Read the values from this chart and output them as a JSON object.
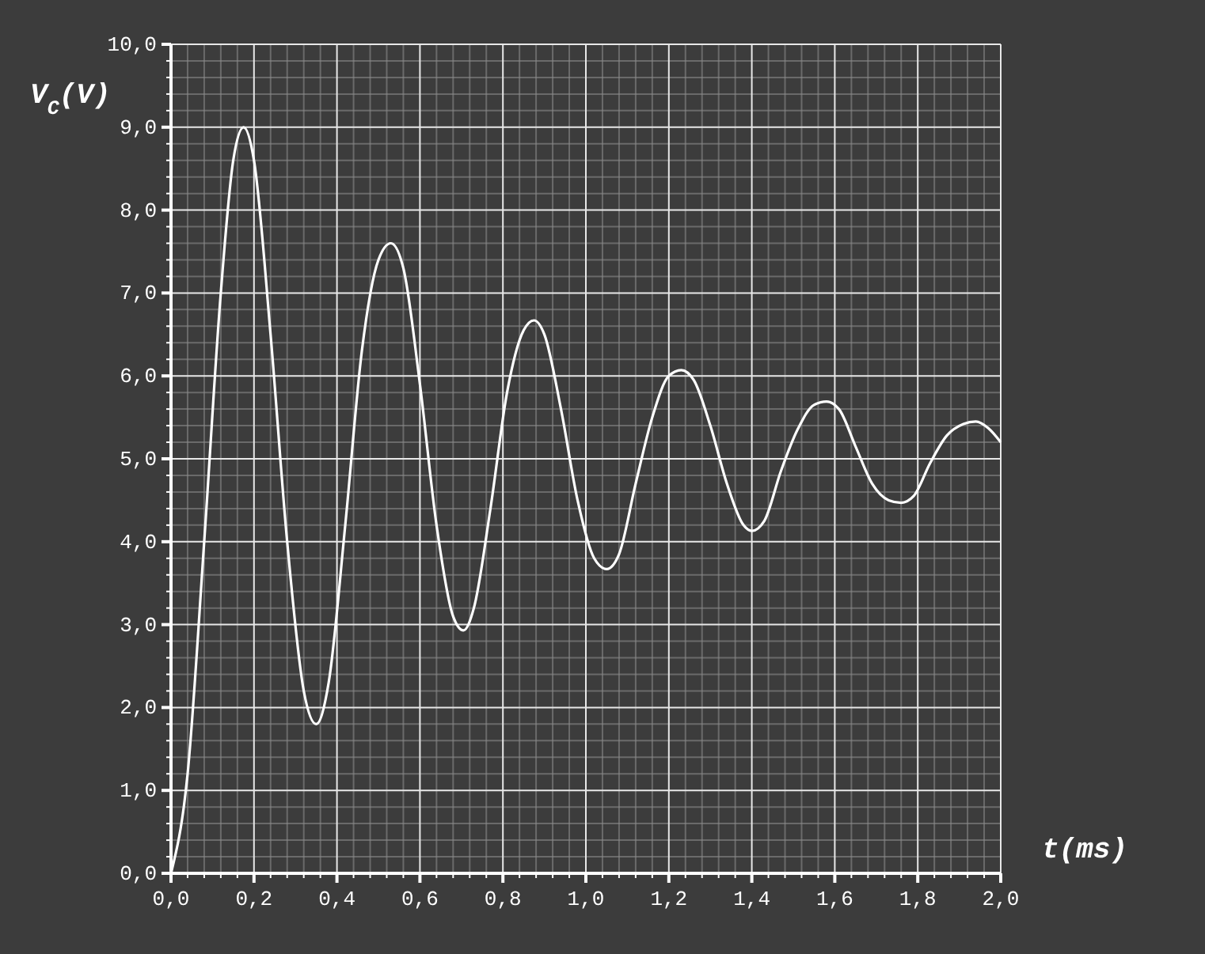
{
  "chart_data": {
    "type": "line",
    "xlabel": "t(ms)",
    "ylabel": "V$_{C}$(V)",
    "x": [
      0,
      0.04,
      0.08,
      0.12,
      0.15,
      0.175,
      0.2,
      0.24,
      0.28,
      0.32,
      0.35,
      0.38,
      0.42,
      0.46,
      0.5,
      0.53,
      0.56,
      0.6,
      0.64,
      0.68,
      0.705,
      0.73,
      0.77,
      0.81,
      0.85,
      0.875,
      0.9,
      0.94,
      0.98,
      1.02,
      1.05,
      1.08,
      1.12,
      1.16,
      1.2,
      1.23,
      1.26,
      1.3,
      1.34,
      1.38,
      1.4,
      1.43,
      1.47,
      1.51,
      1.55,
      1.58,
      1.61,
      1.65,
      1.69,
      1.73,
      1.76,
      1.79,
      1.83,
      1.87,
      1.91,
      1.94,
      1.97,
      2.0
    ],
    "series": [
      {
        "color": "#ffffff",
        "values": [
          0,
          1.2,
          4.0,
          7.0,
          8.6,
          9.0,
          8.6,
          6.5,
          4.0,
          2.2,
          1.8,
          2.3,
          4.2,
          6.3,
          7.4,
          7.6,
          7.3,
          5.9,
          4.2,
          3.1,
          2.93,
          3.2,
          4.4,
          5.8,
          6.55,
          6.67,
          6.5,
          5.6,
          4.5,
          3.8,
          3.67,
          3.85,
          4.7,
          5.5,
          6.0,
          6.07,
          5.95,
          5.4,
          4.7,
          4.2,
          4.13,
          4.25,
          4.85,
          5.35,
          5.65,
          5.69,
          5.6,
          5.15,
          4.7,
          4.5,
          4.47,
          4.55,
          4.95,
          5.28,
          5.42,
          5.45,
          5.37,
          5.2
        ]
      }
    ],
    "xlim": [
      0,
      2
    ],
    "ylim": [
      0,
      10
    ],
    "xticks": [
      {
        "value": 0,
        "label": "0,0"
      },
      {
        "value": 0.2,
        "label": "0,2"
      },
      {
        "value": 0.4,
        "label": "0,4"
      },
      {
        "value": 0.6,
        "label": "0,6"
      },
      {
        "value": 0.8,
        "label": "0,8"
      },
      {
        "value": 1,
        "label": "1,0"
      },
      {
        "value": 1.2,
        "label": "1,2"
      },
      {
        "value": 1.4,
        "label": "1,4"
      },
      {
        "value": 1.6,
        "label": "1,6"
      },
      {
        "value": 1.8,
        "label": "1,8"
      },
      {
        "value": 2,
        "label": "2,0"
      }
    ],
    "yticks": [
      {
        "value": 0,
        "label": "0,0"
      },
      {
        "value": 1,
        "label": "1,0"
      },
      {
        "value": 2,
        "label": "2,0"
      },
      {
        "value": 3,
        "label": "3,0"
      },
      {
        "value": 4,
        "label": "4,0"
      },
      {
        "value": 5,
        "label": "5,0"
      },
      {
        "value": 6,
        "label": "6,0"
      },
      {
        "value": 7,
        "label": "7,0"
      },
      {
        "value": 8,
        "label": "8,0"
      },
      {
        "value": 9,
        "label": "9,0"
      },
      {
        "value": 10,
        "label": "10,0"
      }
    ],
    "grid": true,
    "marker": "none",
    "line_style": "solid"
  }
}
